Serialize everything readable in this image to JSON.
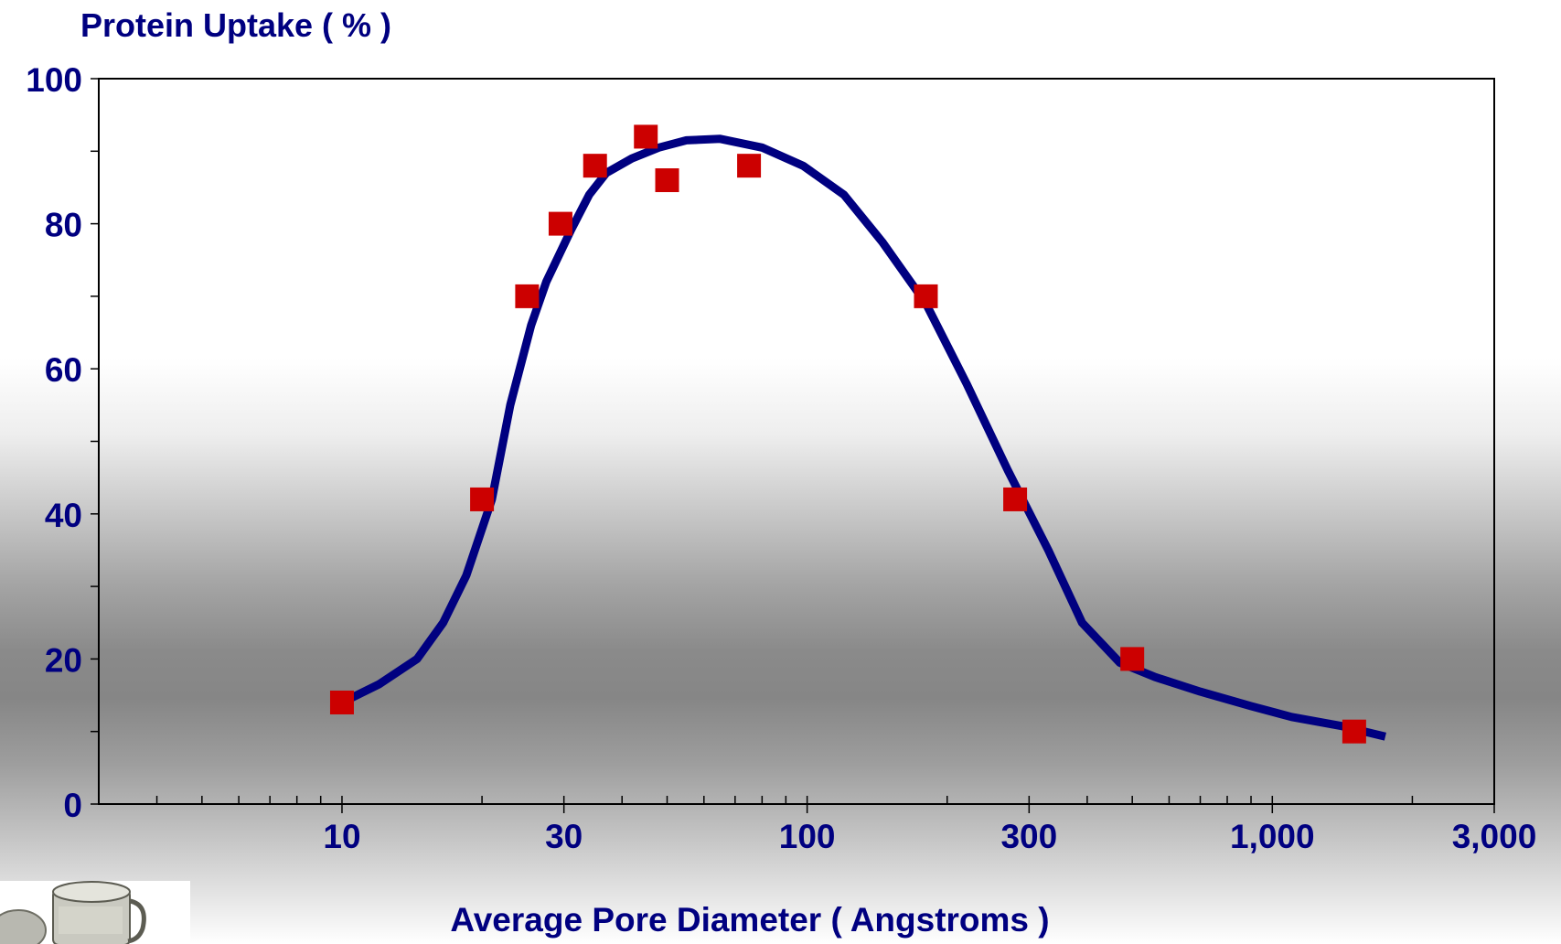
{
  "chart_data": {
    "type": "scatter",
    "ylabel": "Protein Uptake ( % )",
    "xlabel": "Average Pore Diameter ( Angstroms )",
    "x_scale": "log",
    "xlim": [
      3,
      3000
    ],
    "ylim": [
      0,
      100
    ],
    "x_ticks": [
      {
        "value": 10,
        "label": "10"
      },
      {
        "value": 30,
        "label": "30"
      },
      {
        "value": 100,
        "label": "100"
      },
      {
        "value": 300,
        "label": "300"
      },
      {
        "value": 1000,
        "label": "1,000"
      },
      {
        "value": 3000,
        "label": "3,000"
      }
    ],
    "y_ticks": [
      {
        "value": 0,
        "label": "0"
      },
      {
        "value": 20,
        "label": "20"
      },
      {
        "value": 40,
        "label": "40"
      },
      {
        "value": 60,
        "label": "60"
      },
      {
        "value": 80,
        "label": "80"
      },
      {
        "value": 100,
        "label": "100"
      }
    ],
    "grid": false,
    "points": [
      {
        "x": 10,
        "y": 14
      },
      {
        "x": 20,
        "y": 42
      },
      {
        "x": 25,
        "y": 70
      },
      {
        "x": 29.5,
        "y": 80
      },
      {
        "x": 35,
        "y": 88
      },
      {
        "x": 45,
        "y": 92
      },
      {
        "x": 50,
        "y": 86
      },
      {
        "x": 75,
        "y": 88
      },
      {
        "x": 180,
        "y": 70
      },
      {
        "x": 280,
        "y": 42
      },
      {
        "x": 500,
        "y": 20
      },
      {
        "x": 1500,
        "y": 10
      }
    ],
    "fit_curve": [
      {
        "x": 10,
        "y": 14
      },
      {
        "x": 12,
        "y": 16.5
      },
      {
        "x": 14.5,
        "y": 20
      },
      {
        "x": 16.5,
        "y": 25
      },
      {
        "x": 18.5,
        "y": 31.5
      },
      {
        "x": 21,
        "y": 42
      },
      {
        "x": 23,
        "y": 55
      },
      {
        "x": 25.5,
        "y": 66
      },
      {
        "x": 27.5,
        "y": 72
      },
      {
        "x": 31,
        "y": 79
      },
      {
        "x": 34,
        "y": 84
      },
      {
        "x": 37,
        "y": 87
      },
      {
        "x": 42,
        "y": 89
      },
      {
        "x": 48,
        "y": 90.5
      },
      {
        "x": 55,
        "y": 91.5
      },
      {
        "x": 65,
        "y": 91.7
      },
      {
        "x": 80,
        "y": 90.5
      },
      {
        "x": 98,
        "y": 88
      },
      {
        "x": 120,
        "y": 84
      },
      {
        "x": 145,
        "y": 77.5
      },
      {
        "x": 180,
        "y": 69
      },
      {
        "x": 220,
        "y": 58
      },
      {
        "x": 270,
        "y": 46
      },
      {
        "x": 330,
        "y": 35
      },
      {
        "x": 390,
        "y": 25
      },
      {
        "x": 470,
        "y": 19.5
      },
      {
        "x": 560,
        "y": 17.5
      },
      {
        "x": 700,
        "y": 15.5
      },
      {
        "x": 900,
        "y": 13.5
      },
      {
        "x": 1100,
        "y": 12
      },
      {
        "x": 1400,
        "y": 10.8
      },
      {
        "x": 1750,
        "y": 9.3
      }
    ],
    "colors": {
      "points": "#cc0000",
      "curve": "#000080",
      "text": "#000080"
    }
  }
}
